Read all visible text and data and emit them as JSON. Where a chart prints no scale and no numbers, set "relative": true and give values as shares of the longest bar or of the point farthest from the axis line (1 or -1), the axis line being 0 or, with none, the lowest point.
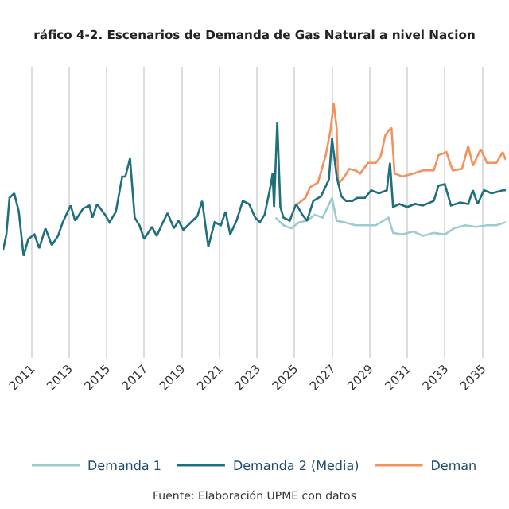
{
  "chart_data": {
    "type": "line",
    "relative": true,
    "title": "ráfico 4-2. Escenarios de Demanda de Gas Natural a nivel Nacion",
    "annotations": [
      "Fuente: Elaboración UPME con datos"
    ],
    "xlim": [
      "2009-07",
      "2036-04"
    ],
    "xticks": [
      {
        "value": "2011",
        "label": "2011"
      },
      {
        "value": "2013",
        "label": "2013"
      },
      {
        "value": "2015",
        "label": "2015"
      },
      {
        "value": "2017",
        "label": "2017"
      },
      {
        "value": "2019",
        "label": "2019"
      },
      {
        "value": "2021",
        "label": "2021"
      },
      {
        "value": "2023",
        "label": "2023"
      },
      {
        "value": "2025",
        "label": "2025"
      },
      {
        "value": "2027",
        "label": "2027"
      },
      {
        "value": "2029",
        "label": "2029"
      },
      {
        "value": "2031",
        "label": "2031"
      },
      {
        "value": "2033",
        "label": "2033"
      },
      {
        "value": "2035",
        "label": "2035"
      }
    ],
    "grid": "x",
    "legend": "bottom",
    "marker": "none",
    "line_style": "solid",
    "series": [
      {
        "name": "Demanda 1",
        "color": "#9ccbd0",
        "x": [
          "2024-01",
          "2024-06",
          "2024-11",
          "2025-04",
          "2025-09",
          "2026-02",
          "2026-07",
          "2027-01",
          "2027-04",
          "2027-09",
          "2028-04",
          "2028-10",
          "2029-05",
          "2030-01",
          "2030-04",
          "2030-10",
          "2031-05",
          "2031-11",
          "2032-06",
          "2033-01",
          "2033-07",
          "2034-02",
          "2034-09",
          "2035-04",
          "2035-10",
          "2036-04"
        ],
        "values": [
          0.25,
          0.2,
          0.18,
          0.22,
          0.23,
          0.27,
          0.25,
          0.38,
          0.23,
          0.22,
          0.2,
          0.2,
          0.2,
          0.25,
          0.15,
          0.14,
          0.16,
          0.13,
          0.15,
          0.14,
          0.18,
          0.2,
          0.19,
          0.2,
          0.2,
          0.22
        ]
      },
      {
        "name": "Demanda 2 (Media)",
        "color": "#1f6f7c",
        "x": [
          "2009-07",
          "2009-09",
          "2009-11",
          "2010-02",
          "2010-05",
          "2010-08",
          "2010-11",
          "2011-03",
          "2011-06",
          "2011-10",
          "2012-02",
          "2012-06",
          "2012-09",
          "2013-02",
          "2013-05",
          "2013-10",
          "2014-02",
          "2014-04",
          "2014-07",
          "2014-12",
          "2015-03",
          "2015-07",
          "2015-11",
          "2016-01",
          "2016-04",
          "2016-07",
          "2016-10",
          "2017-01",
          "2017-06",
          "2017-09",
          "2018-01",
          "2018-04",
          "2018-08",
          "2018-11",
          "2019-02",
          "2019-07",
          "2019-11",
          "2020-02",
          "2020-06",
          "2020-10",
          "2021-02",
          "2021-05",
          "2021-08",
          "2021-12",
          "2022-04",
          "2022-08",
          "2022-12",
          "2023-03",
          "2023-06",
          "2023-10",
          "2023-11",
          "2023-12",
          "2024-02",
          "2024-04",
          "2024-06",
          "2024-10",
          "2025-02",
          "2025-06",
          "2025-09",
          "2026-01",
          "2026-06",
          "2026-11",
          "2027-01",
          "2027-04",
          "2027-07",
          "2027-10",
          "2028-02",
          "2028-05",
          "2028-10",
          "2029-02",
          "2029-07",
          "2029-12",
          "2030-02",
          "2030-04",
          "2030-08",
          "2031-01",
          "2031-06",
          "2031-11",
          "2032-06",
          "2032-09",
          "2033-01",
          "2033-05",
          "2033-11",
          "2034-04",
          "2034-07",
          "2034-10",
          "2035-02",
          "2035-07",
          "2036-02",
          "2036-04"
        ],
        "values": [
          0.04,
          0.14,
          0.38,
          0.41,
          0.29,
          0.0,
          0.11,
          0.14,
          0.05,
          0.18,
          0.07,
          0.13,
          0.22,
          0.33,
          0.23,
          0.31,
          0.33,
          0.25,
          0.34,
          0.27,
          0.22,
          0.29,
          0.52,
          0.52,
          0.64,
          0.25,
          0.2,
          0.11,
          0.19,
          0.13,
          0.22,
          0.28,
          0.18,
          0.23,
          0.17,
          0.22,
          0.26,
          0.36,
          0.06,
          0.22,
          0.2,
          0.29,
          0.14,
          0.23,
          0.36,
          0.34,
          0.25,
          0.22,
          0.27,
          0.47,
          0.54,
          0.32,
          0.88,
          0.32,
          0.25,
          0.23,
          0.34,
          0.27,
          0.23,
          0.36,
          0.39,
          0.5,
          0.77,
          0.52,
          0.39,
          0.36,
          0.36,
          0.38,
          0.38,
          0.43,
          0.41,
          0.43,
          0.61,
          0.32,
          0.34,
          0.32,
          0.34,
          0.33,
          0.36,
          0.46,
          0.47,
          0.33,
          0.35,
          0.34,
          0.43,
          0.34,
          0.43,
          0.41,
          0.43,
          0.43
        ]
      },
      {
        "name": "Deman",
        "color": "#f4925e",
        "x": [
          "2025-02",
          "2025-03",
          "2025-08",
          "2025-11",
          "2026-04",
          "2026-09",
          "2026-12",
          "2027-02",
          "2027-04",
          "2027-05",
          "2027-09",
          "2027-12",
          "2028-04",
          "2028-07",
          "2028-12",
          "2029-05",
          "2029-08",
          "2029-11",
          "2030-01",
          "2030-03",
          "2030-05",
          "2030-10",
          "2031-05",
          "2031-11",
          "2032-06",
          "2032-09",
          "2033-02",
          "2033-06",
          "2033-12",
          "2034-04",
          "2034-07",
          "2034-12",
          "2035-04",
          "2035-10",
          "2036-02",
          "2036-04"
        ],
        "values": [
          0.34,
          0.34,
          0.38,
          0.45,
          0.48,
          0.66,
          0.82,
          1.0,
          0.84,
          0.47,
          0.52,
          0.57,
          0.56,
          0.54,
          0.61,
          0.61,
          0.65,
          0.79,
          0.82,
          0.84,
          0.54,
          0.52,
          0.54,
          0.56,
          0.56,
          0.66,
          0.68,
          0.56,
          0.57,
          0.72,
          0.59,
          0.7,
          0.61,
          0.61,
          0.68,
          0.63
        ]
      }
    ]
  }
}
